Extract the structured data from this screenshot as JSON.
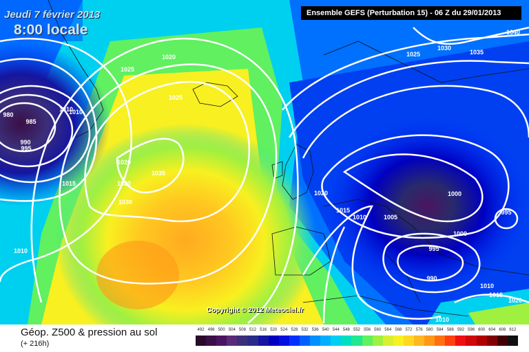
{
  "header": {
    "date": "Jeudi 7 février 2013",
    "local_time": "8:00 locale",
    "model_info": "Ensemble GEFS (Perturbation 15)  -  06 Z du 29/01/2013"
  },
  "copyright": "Copyright © 2012 Meteociel.fr",
  "footer": {
    "title": "Géop. Z500 & pression au sol",
    "subtitle": "(+ 216h)"
  },
  "scale": {
    "labels": [
      "492",
      "496",
      "500",
      "504",
      "508",
      "512",
      "516",
      "520",
      "524",
      "528",
      "532",
      "536",
      "540",
      "544",
      "548",
      "552",
      "556",
      "560",
      "564",
      "568",
      "572",
      "576",
      "580",
      "584",
      "588",
      "592",
      "596",
      "600",
      "604",
      "608",
      "612"
    ],
    "colors": [
      "#2a0a2a",
      "#3a0f45",
      "#4a1560",
      "#5a2a7a",
      "#3b2f7a",
      "#2a2a8a",
      "#1515a0",
      "#0000c0",
      "#0010e0",
      "#0030ff",
      "#0060ff",
      "#0090ff",
      "#00b0ff",
      "#00d0f0",
      "#00e0c0",
      "#20e890",
      "#60f060",
      "#a0f040",
      "#d8f030",
      "#f8f020",
      "#ffd820",
      "#ffb820",
      "#ff9818",
      "#ff7010",
      "#ff4010",
      "#f01010",
      "#d00808",
      "#b00000",
      "#800000",
      "#400000",
      "#101010"
    ]
  },
  "map_data": {
    "isobar_labels": [
      "1020",
      "1025",
      "1025",
      "980",
      "985",
      "990",
      "995",
      "1010",
      "1010",
      "1015",
      "1010",
      "1020",
      "1020",
      "1030",
      "1035",
      "1040",
      "1035",
      "1030",
      "1025",
      "1020",
      "1015",
      "1010",
      "1005",
      "1000",
      "1000",
      "995",
      "995",
      "990",
      "1010",
      "1015",
      "1020",
      "1010"
    ]
  }
}
